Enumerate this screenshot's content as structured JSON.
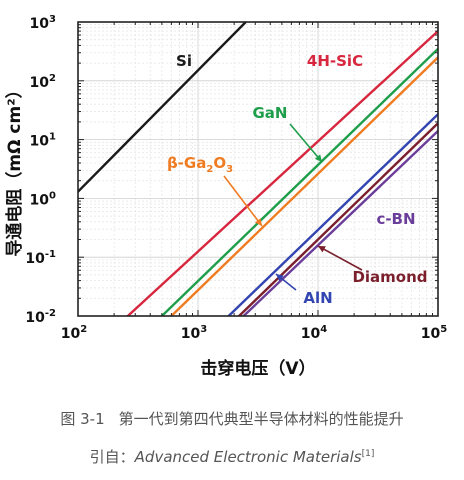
{
  "chart_data": {
    "type": "line",
    "xlabel": "击穿电压（V）",
    "ylabel": "导通电阻（mΩ cm²）",
    "x_scale": "log",
    "y_scale": "log",
    "xlim": [
      100,
      100000
    ],
    "ylim": [
      0.01,
      1000
    ],
    "x_ticks": [
      {
        "value": 100,
        "base": "10",
        "exp": "2"
      },
      {
        "value": 1000,
        "base": "10",
        "exp": "3"
      },
      {
        "value": 10000,
        "base": "10",
        "exp": "4"
      },
      {
        "value": 100000,
        "base": "10",
        "exp": "5"
      }
    ],
    "y_ticks": [
      {
        "value": 0.01,
        "base": "10",
        "exp": "-2"
      },
      {
        "value": 0.1,
        "base": "10",
        "exp": "-1"
      },
      {
        "value": 1,
        "base": "10",
        "exp": "0"
      },
      {
        "value": 10,
        "base": "10",
        "exp": "1"
      },
      {
        "value": 100,
        "base": "10",
        "exp": "2"
      },
      {
        "value": 1000,
        "base": "10",
        "exp": "3"
      }
    ],
    "grid": true,
    "series": [
      {
        "name": "Si",
        "color": "#1a1a1a",
        "x": [
          100,
          2500
        ],
        "y": [
          1.3,
          1000
        ]
      },
      {
        "name": "4H-SiC",
        "color": "#d7263d",
        "x": [
          260,
          100000
        ],
        "y": [
          0.01,
          700
        ]
      },
      {
        "name": "GaN",
        "color": "#1e9e4a",
        "x": [
          500,
          100000
        ],
        "y": [
          0.01,
          350
        ]
      },
      {
        "name": "β-Ga₂O₃",
        "color": "#f07c22",
        "x": [
          600,
          100000
        ],
        "y": [
          0.01,
          250
        ]
      },
      {
        "name": "AlN",
        "color": "#3345b0",
        "x": [
          1800,
          100000
        ],
        "y": [
          0.01,
          27
        ]
      },
      {
        "name": "Diamond",
        "color": "#7a1f2b",
        "x": [
          2200,
          100000
        ],
        "y": [
          0.01,
          19
        ]
      },
      {
        "name": "c-BN",
        "color": "#6a3d9a",
        "x": [
          2400,
          100000
        ],
        "y": [
          0.01,
          14
        ]
      }
    ],
    "labels": [
      {
        "text": "Si",
        "color": "#1a1a1a"
      },
      {
        "text": "4H-SiC",
        "color": "#d7263d"
      },
      {
        "text": "GaN",
        "color": "#1e9e4a"
      },
      {
        "text": "β-Ga",
        "sub1": "2",
        "mid": "O",
        "sub2": "3",
        "color": "#f07c22"
      },
      {
        "text": "c-BN",
        "color": "#6a3d9a"
      },
      {
        "text": "Diamond",
        "color": "#7a1f2b"
      },
      {
        "text": "AlN",
        "color": "#3345b0"
      }
    ]
  },
  "caption": {
    "figure_number": "图 3-1",
    "title": "第一代到第四代典型半导体材料的性能提升",
    "source_prefix": "引自：",
    "source_name": "Advanced Electronic Materials",
    "ref": "[1]"
  }
}
